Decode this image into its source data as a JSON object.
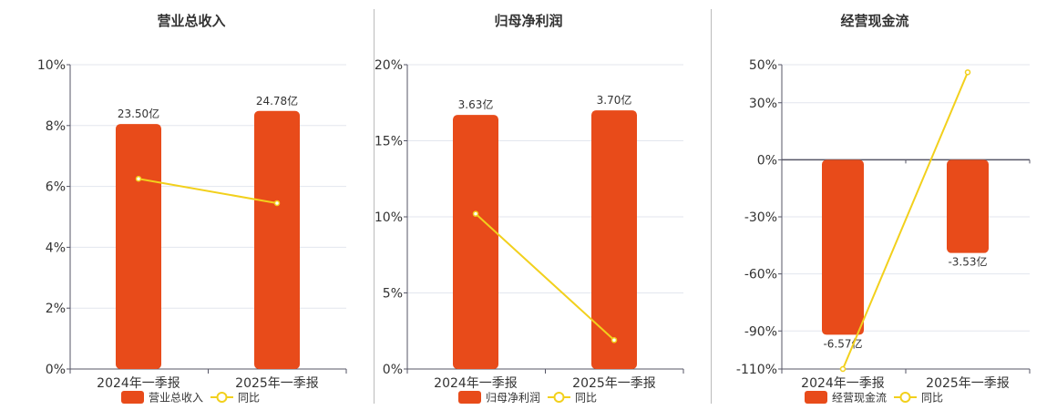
{
  "colors": {
    "bar": "#E84B1A",
    "line": "#F2D01C",
    "grid": "#E3E6EE",
    "axis": "#555566",
    "divider": "#BBBBBB"
  },
  "chart_data": [
    {
      "type": "bar",
      "title": "营业总收入",
      "categories": [
        "2024年一季报",
        "2025年一季报"
      ],
      "bar_labels": [
        "23.50亿",
        "24.78亿"
      ],
      "bar_values_pct": [
        8.05,
        8.48
      ],
      "line_values_pct": [
        6.25,
        5.45
      ],
      "ylim": [
        0,
        10
      ],
      "yticks": [
        0,
        2,
        4,
        6,
        8,
        10
      ],
      "ytick_labels": [
        "0%",
        "2%",
        "4%",
        "6%",
        "8%",
        "10%"
      ],
      "zero_line": false,
      "legend": {
        "bar": "营业总收入",
        "line": "同比"
      }
    },
    {
      "type": "bar",
      "title": "归母净利润",
      "categories": [
        "2024年一季报",
        "2025年一季报"
      ],
      "bar_labels": [
        "3.63亿",
        "3.70亿"
      ],
      "bar_values_pct": [
        16.7,
        17.0
      ],
      "line_values_pct": [
        10.2,
        1.9
      ],
      "ylim": [
        0,
        20
      ],
      "yticks": [
        0,
        5,
        10,
        15,
        20
      ],
      "ytick_labels": [
        "0%",
        "5%",
        "10%",
        "15%",
        "20%"
      ],
      "zero_line": false,
      "legend": {
        "bar": "归母净利润",
        "line": "同比"
      }
    },
    {
      "type": "bar",
      "title": "经营现金流",
      "categories": [
        "2024年一季报",
        "2025年一季报"
      ],
      "bar_labels": [
        "-6.57亿",
        "-3.53亿"
      ],
      "bar_values_pct": [
        -92,
        -49
      ],
      "line_values_pct": [
        -110,
        46
      ],
      "ylim": [
        -110,
        50
      ],
      "yticks": [
        -110,
        -90,
        -60,
        -30,
        0,
        30,
        50
      ],
      "ytick_labels": [
        "-110%",
        "-90%",
        "-60%",
        "-30%",
        "0%",
        "30%",
        "50%"
      ],
      "zero_line": true,
      "legend": {
        "bar": "经营现金流",
        "line": "同比"
      }
    }
  ]
}
